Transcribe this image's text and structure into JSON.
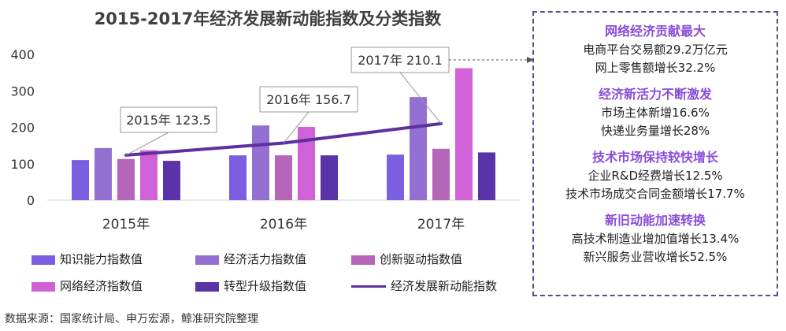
{
  "title": "2015-2017年经济发展新动能指数及分类指数",
  "source": "数据来源：国家统计局、申万宏源，鲸准研究院整理",
  "chart_data": {
    "type": "bar",
    "categories": [
      "2015年",
      "2016年",
      "2017年"
    ],
    "yticks": [
      0,
      100,
      200,
      300,
      400
    ],
    "ylim": [
      0,
      400
    ],
    "series": [
      {
        "name": "知识能力指数值",
        "color": "#7b5fe0",
        "values": [
          110,
          123,
          125
        ]
      },
      {
        "name": "经济活力指数值",
        "color": "#9370d2",
        "values": [
          143,
          205,
          283
        ]
      },
      {
        "name": "创新驱动指数值",
        "color": "#b566b8",
        "values": [
          113,
          123,
          141
        ]
      },
      {
        "name": "网络经济指数值",
        "color": "#d061d6",
        "values": [
          137,
          201,
          362
        ]
      },
      {
        "name": "转型升级指数值",
        "color": "#5a33a8",
        "values": [
          108,
          123,
          131
        ]
      }
    ],
    "line": {
      "name": "经济发展新动能指数",
      "color": "#5e2fa3",
      "values": [
        123.5,
        156.7,
        210.1
      ]
    },
    "annotations": [
      "2015年 123.5",
      "2016年 156.7",
      "2017年 210.1"
    ]
  },
  "side_panel": [
    {
      "heading": "网络经济贡献最大",
      "lines": [
        "电商平台交易额29.2万亿元",
        "网上零售额增长32.2%"
      ]
    },
    {
      "heading": "经济新活力不断激发",
      "lines": [
        "市场主体新增16.6%",
        "快递业务量增长28%"
      ]
    },
    {
      "heading": "技术市场保持较快增长",
      "lines": [
        "企业R&D经费增长12.5%",
        "技术市场成交合同金额增长17.7%"
      ]
    },
    {
      "heading": "新旧动能加速转换",
      "lines": [
        "高技术制造业增加值增长13.4%",
        "新兴服务业营收增长52.5%"
      ]
    }
  ]
}
